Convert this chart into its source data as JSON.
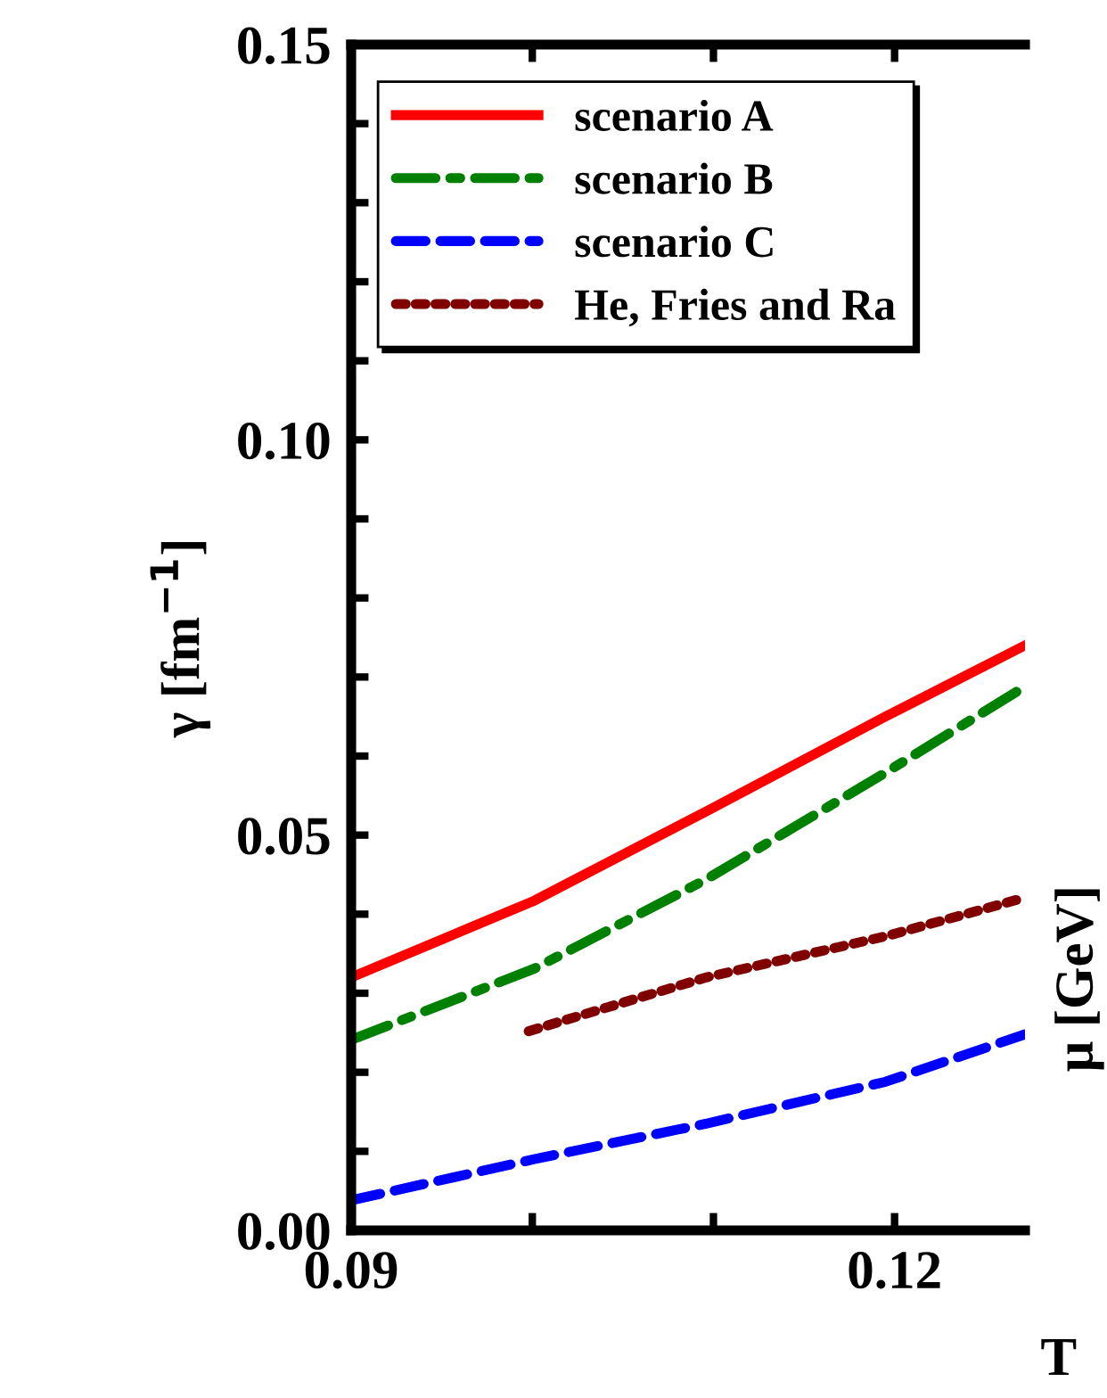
{
  "chart_data": {
    "type": "line",
    "ylabel": "γ [fm$^{−1}$]",
    "xlabel": "T",
    "x": [
      0.09,
      0.1001,
      0.1096,
      0.1195,
      0.1272
    ],
    "series": [
      {
        "name": "scenario A",
        "color": "#ff0000",
        "line_style": "solid",
        "values": [
          0.032,
          0.0417,
          0.053,
          0.065,
          0.074
        ]
      },
      {
        "name": "scenario B",
        "color": "#008000",
        "line_style": "dashdot",
        "values": [
          0.0241,
          0.0331,
          0.0444,
          0.0579,
          0.0688
        ]
      },
      {
        "name": "scenario C",
        "color": "#0000ff",
        "line_style": "dashed",
        "values": [
          0.0038,
          0.009,
          0.0135,
          0.0188,
          0.0248
        ]
      },
      {
        "name": "He, Fries and Ra",
        "color": "#800000",
        "line_style": "dotted",
        "x": [
          0.0998,
          0.1096,
          0.1195,
          0.1272
        ],
        "values": [
          0.0252,
          0.032,
          0.0372,
          0.0421
        ]
      }
    ],
    "xlim": [
      0.09,
      0.1272
    ],
    "ylim": [
      0,
      0.15
    ],
    "xticks": [
      {
        "value": 0.09,
        "label": "0.09"
      },
      {
        "value": 0.1,
        "label": null
      },
      {
        "value": 0.11,
        "label": null
      },
      {
        "value": 0.12,
        "label": "0.12"
      }
    ],
    "yticks": [
      {
        "value": 0,
        "label": "0.00"
      },
      {
        "value": 0.01,
        "label": null
      },
      {
        "value": 0.02,
        "label": null
      },
      {
        "value": 0.03,
        "label": null
      },
      {
        "value": 0.04,
        "label": null
      },
      {
        "value": 0.05,
        "label": "0.05"
      },
      {
        "value": 0.06,
        "label": null
      },
      {
        "value": 0.07,
        "label": null
      },
      {
        "value": 0.08,
        "label": null
      },
      {
        "value": 0.09,
        "label": null
      },
      {
        "value": 0.1,
        "label": "0.10"
      },
      {
        "value": 0.11,
        "label": null
      },
      {
        "value": 0.12,
        "label": null
      },
      {
        "value": 0.13,
        "label": null
      },
      {
        "value": 0.14,
        "label": null
      },
      {
        "value": 0.15,
        "label": "0.15"
      }
    ],
    "annotations": [
      "μ [GeV]"
    ],
    "legend": "top left",
    "grid": false,
    "marker": "none"
  }
}
